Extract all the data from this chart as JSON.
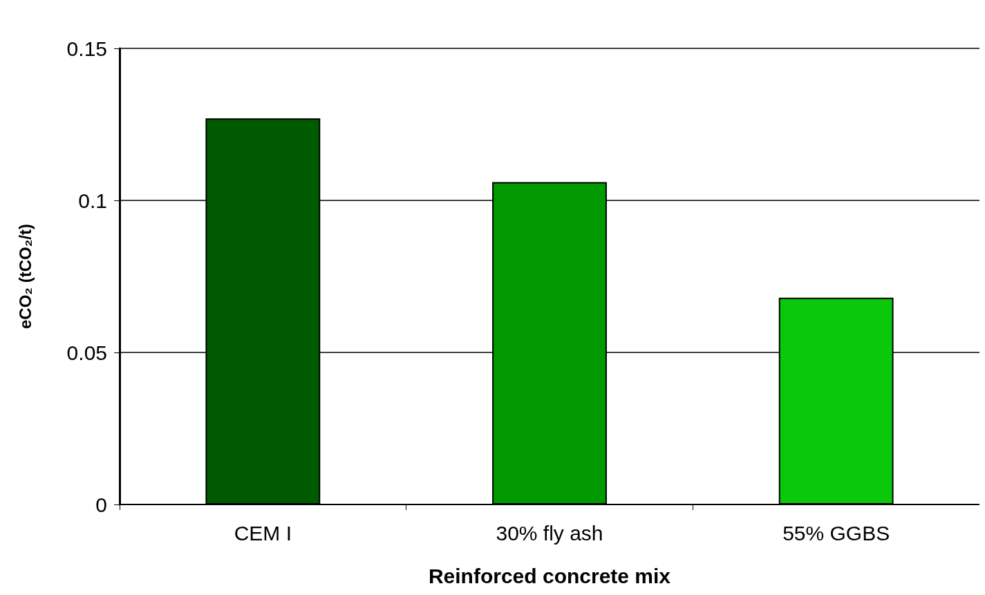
{
  "chart_data": {
    "type": "bar",
    "xlabel": "Reinforced concrete mix",
    "ylabel": "eCO₂ (tCO₂/t)",
    "categories": [
      "CEM I",
      "30% fly ash",
      "55% GGBS"
    ],
    "values": [
      0.127,
      0.106,
      0.068
    ],
    "colors": [
      "#005a00",
      "#009a00",
      "#0cc80c"
    ],
    "ylim": [
      0,
      0.15
    ],
    "yticks": [
      0,
      0.05,
      0.1,
      0.15
    ],
    "grid": "y"
  }
}
